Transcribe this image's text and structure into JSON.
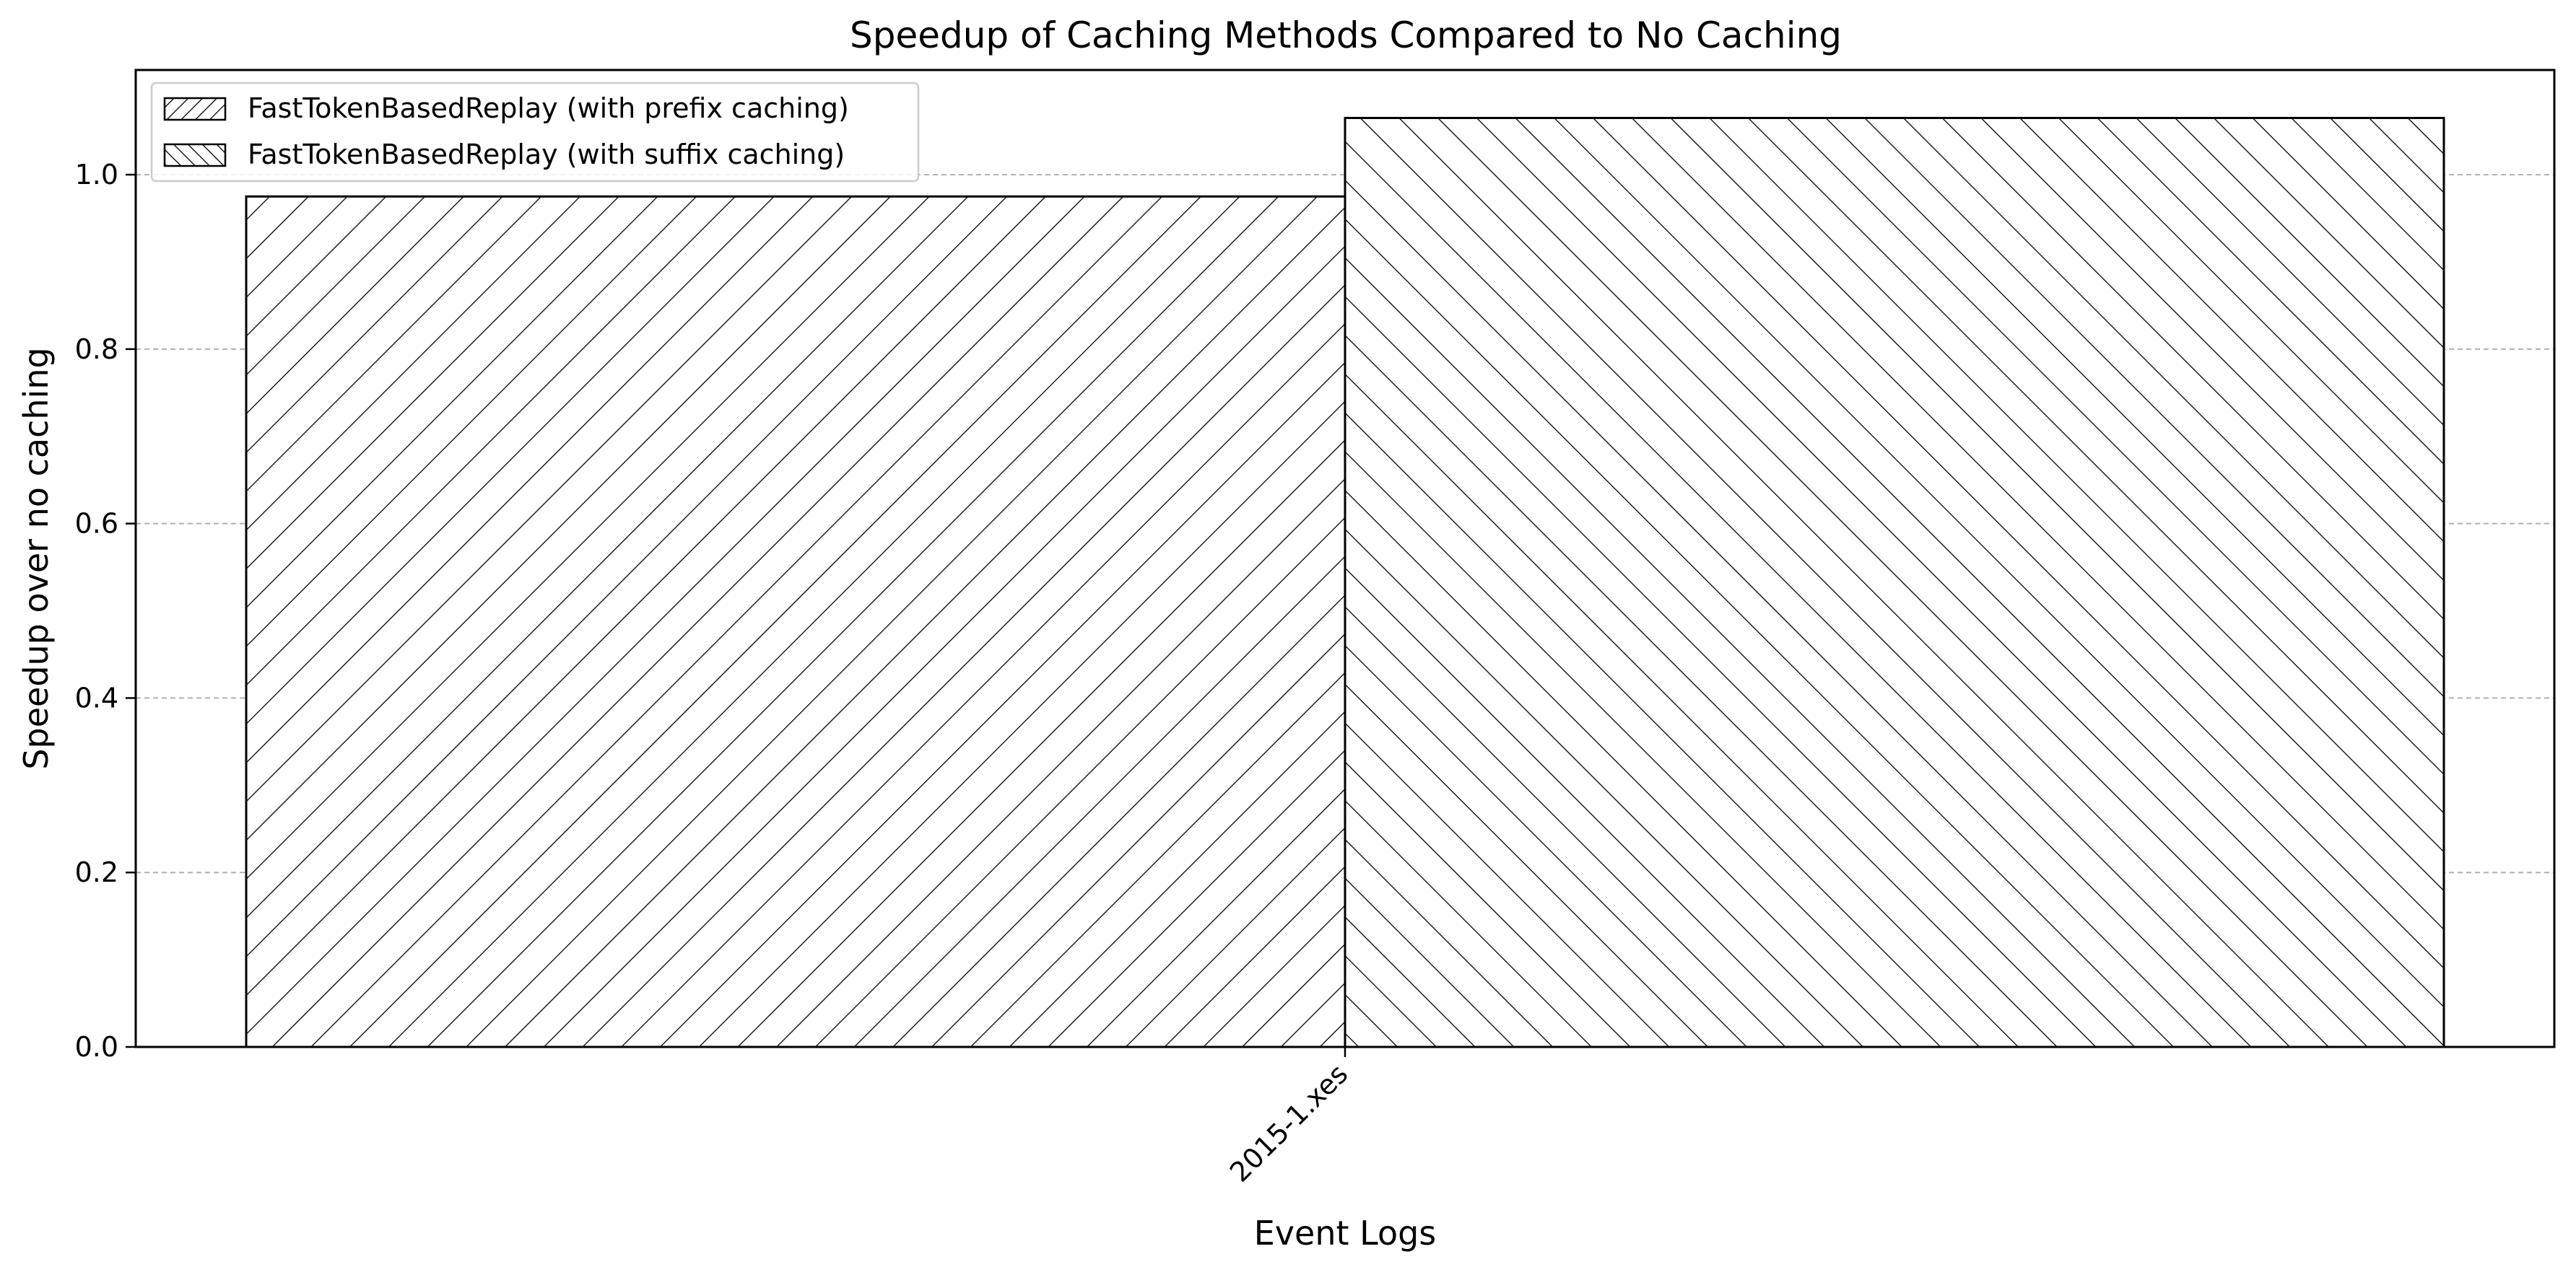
{
  "chart_data": {
    "type": "bar",
    "title": "Speedup of Caching Methods Compared to No Caching",
    "xlabel": "Event Logs",
    "ylabel": "Speedup over no caching",
    "categories": [
      "2015-1.xes"
    ],
    "series": [
      {
        "name": "FastTokenBasedReplay (with prefix caching)",
        "values": [
          0.975
        ],
        "hatch": "forward",
        "color": "#ffffff"
      },
      {
        "name": "FastTokenBasedReplay (with suffix caching)",
        "values": [
          1.065
        ],
        "hatch": "backward",
        "color": "#ffffff"
      }
    ],
    "ylim": [
      0,
      1.12
    ],
    "yticks": [
      0.0,
      0.2,
      0.4,
      0.6,
      0.8,
      1.0
    ],
    "ytick_labels": [
      "0.0",
      "0.2",
      "0.4",
      "0.6",
      "0.8",
      "1.0"
    ],
    "grid": true,
    "grid_axis": "y",
    "legend_position": "top-left",
    "colors": {
      "edge": "#000000",
      "grid": "#b0b0b0",
      "background": "#ffffff"
    }
  }
}
